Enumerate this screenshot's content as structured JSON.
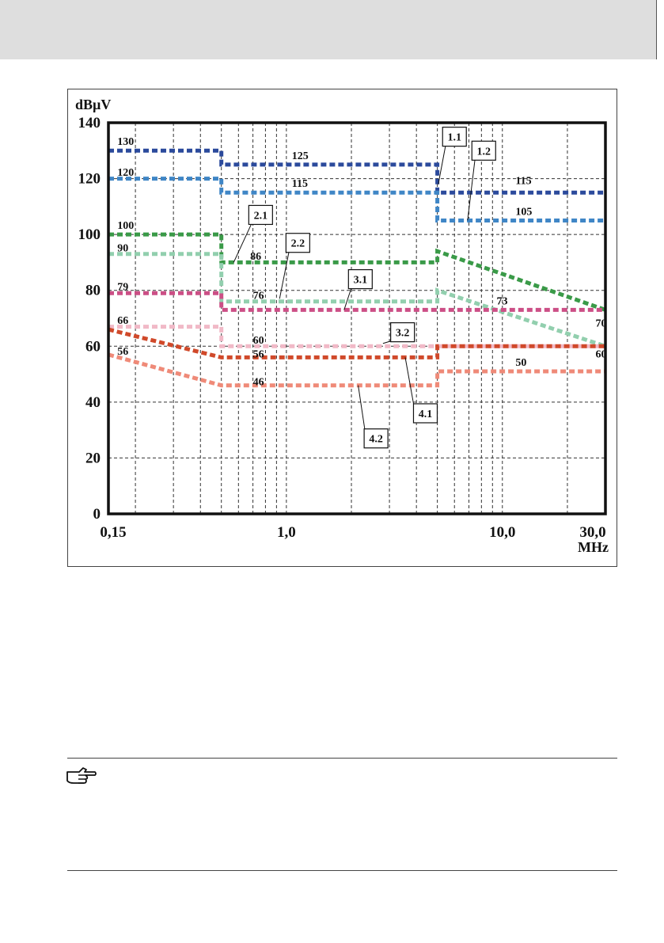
{
  "chart_data": {
    "type": "line",
    "x_scale": "log",
    "xlim": [
      0.15,
      30.0
    ],
    "ylim": [
      0,
      140
    ],
    "grid": true,
    "ylabel": "dBµV",
    "xlabel": "MHz",
    "x_tick_labels": [
      {
        "value": 0.15,
        "label": "0,15"
      },
      {
        "value": 1.0,
        "label": "1,0"
      },
      {
        "value": 10.0,
        "label": "10,0"
      },
      {
        "value": 30.0,
        "label": "30,0"
      }
    ],
    "y_tick_labels": [
      {
        "value": 0,
        "label": "0"
      },
      {
        "value": 20,
        "label": "20"
      },
      {
        "value": 40,
        "label": "40"
      },
      {
        "value": 60,
        "label": "60"
      },
      {
        "value": 80,
        "label": "80"
      },
      {
        "value": 100,
        "label": "100"
      },
      {
        "value": 120,
        "label": "120"
      },
      {
        "value": 140,
        "label": "140"
      }
    ],
    "series": [
      {
        "color": "#2b4a9c",
        "points": [
          [
            0.15,
            130
          ],
          [
            0.5,
            130
          ],
          [
            0.5,
            125
          ],
          [
            5,
            125
          ],
          [
            5,
            115
          ],
          [
            30,
            115
          ]
        ]
      },
      {
        "color": "#3f86c6",
        "points": [
          [
            0.15,
            120
          ],
          [
            0.5,
            120
          ],
          [
            0.5,
            115
          ],
          [
            5,
            115
          ],
          [
            5,
            105
          ],
          [
            30,
            105
          ]
        ]
      },
      {
        "color": "#3a9a48",
        "points": [
          [
            0.15,
            100
          ],
          [
            0.5,
            100
          ],
          [
            0.5,
            90
          ],
          [
            5,
            90
          ],
          [
            5,
            94
          ],
          [
            30,
            73
          ]
        ]
      },
      {
        "color": "#92cfae",
        "points": [
          [
            0.15,
            93
          ],
          [
            0.5,
            93
          ],
          [
            0.5,
            76
          ],
          [
            5,
            76
          ],
          [
            5,
            80
          ],
          [
            30,
            60
          ]
        ]
      },
      {
        "color": "#cc4f86",
        "points": [
          [
            0.15,
            79
          ],
          [
            0.5,
            79
          ],
          [
            0.5,
            73
          ],
          [
            30,
            73
          ]
        ]
      },
      {
        "color": "#f1b9c7",
        "points": [
          [
            0.15,
            67
          ],
          [
            0.5,
            67
          ],
          [
            0.5,
            60
          ],
          [
            30,
            60
          ]
        ]
      },
      {
        "color": "#d0492a",
        "points": [
          [
            0.15,
            66
          ],
          [
            0.5,
            56
          ],
          [
            5,
            56
          ],
          [
            5,
            60
          ],
          [
            30,
            60
          ]
        ]
      },
      {
        "color": "#ef8a78",
        "points": [
          [
            0.15,
            57
          ],
          [
            0.5,
            46
          ],
          [
            5,
            46
          ],
          [
            5,
            51
          ],
          [
            30,
            51
          ]
        ]
      }
    ],
    "annotations": [
      {
        "text": "130",
        "x": 0.165,
        "y": 132
      },
      {
        "text": "120",
        "x": 0.165,
        "y": 121
      },
      {
        "text": "125",
        "x": 1.06,
        "y": 127
      },
      {
        "text": "115",
        "x": 1.06,
        "y": 117
      },
      {
        "text": "115",
        "x": 11.5,
        "y": 118
      },
      {
        "text": "105",
        "x": 11.5,
        "y": 107
      },
      {
        "text": "100",
        "x": 0.165,
        "y": 102
      },
      {
        "text": "90",
        "x": 0.165,
        "y": 94
      },
      {
        "text": "86",
        "x": 0.68,
        "y": 91
      },
      {
        "text": "79",
        "x": 0.165,
        "y": 80
      },
      {
        "text": "76",
        "x": 0.7,
        "y": 77
      },
      {
        "text": "73",
        "x": 9.4,
        "y": 75
      },
      {
        "text": "70",
        "x": 27.0,
        "y": 67
      },
      {
        "text": "66",
        "x": 0.165,
        "y": 68
      },
      {
        "text": "60",
        "x": 0.7,
        "y": 61
      },
      {
        "text": "56",
        "x": 0.7,
        "y": 56
      },
      {
        "text": "56",
        "x": 0.165,
        "y": 57
      },
      {
        "text": "60",
        "x": 27.0,
        "y": 56
      },
      {
        "text": "46",
        "x": 0.7,
        "y": 46
      },
      {
        "text": "50",
        "x": 11.5,
        "y": 53
      }
    ],
    "callouts": [
      {
        "text": "1.1",
        "box": [
          6.0,
          135
        ],
        "target": [
          5.05,
          118
        ]
      },
      {
        "text": "1.2",
        "box": [
          8.2,
          130
        ],
        "target": [
          6.9,
          105
        ]
      },
      {
        "text": "2.1",
        "box": [
          0.76,
          107
        ],
        "target": [
          0.57,
          90
        ]
      },
      {
        "text": "2.2",
        "box": [
          1.13,
          97
        ],
        "target": [
          0.93,
          77
        ]
      },
      {
        "text": "3.1",
        "box": [
          2.2,
          84
        ],
        "target": [
          1.85,
          73
        ]
      },
      {
        "text": "3.2",
        "box": [
          3.45,
          65
        ],
        "target": [
          2.8,
          61
        ]
      },
      {
        "text": "4.1",
        "box": [
          4.4,
          36
        ],
        "target": [
          3.55,
          56
        ]
      },
      {
        "text": "4.2",
        "box": [
          2.6,
          27
        ],
        "target": [
          2.15,
          46
        ]
      }
    ]
  }
}
